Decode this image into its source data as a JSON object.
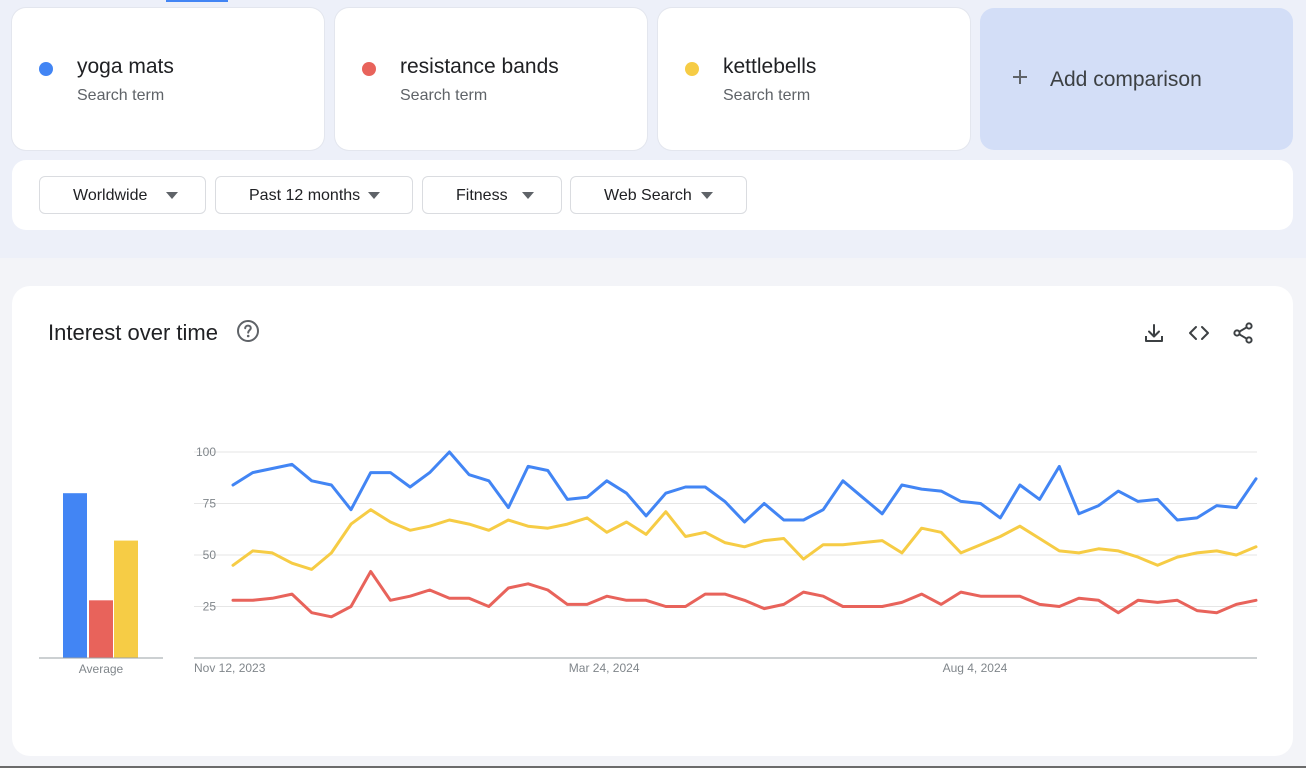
{
  "terms": [
    {
      "name": "yoga mats",
      "type": "Search term",
      "color": "#4285f4"
    },
    {
      "name": "resistance bands",
      "type": "Search term",
      "color": "#e8635b"
    },
    {
      "name": "kettlebells",
      "type": "Search term",
      "color": "#f6cc45"
    }
  ],
  "add_comparison": {
    "label": "Add comparison",
    "icon": "plus-icon"
  },
  "filters": [
    {
      "label": "Worldwide"
    },
    {
      "label": "Past 12 months"
    },
    {
      "label": "Fitness"
    },
    {
      "label": "Web Search"
    }
  ],
  "panel": {
    "title": "Interest over time",
    "help_icon": "help-circle-icon",
    "tools": [
      "download-icon",
      "embed-code-icon",
      "share-icon"
    ]
  },
  "chart_data": {
    "type": "line",
    "averages": {
      "label": "Average",
      "values": [
        80,
        28,
        57
      ]
    },
    "x_tick_labels": [
      "Nov 12, 2023",
      "Mar 24, 2024",
      "Aug 4, 2024"
    ],
    "x_tick_positions": [
      0,
      19,
      38
    ],
    "y_ticks": [
      25,
      50,
      75,
      100
    ],
    "ylim": [
      0,
      100
    ],
    "grid": true,
    "series": [
      {
        "name": "yoga mats",
        "color": "#4285f4",
        "values": [
          84,
          90,
          92,
          94,
          86,
          84,
          72,
          90,
          90,
          83,
          90,
          100,
          89,
          86,
          73,
          93,
          91,
          77,
          78,
          86,
          80,
          69,
          80,
          83,
          83,
          76,
          66,
          75,
          67,
          67,
          72,
          86,
          78,
          70,
          84,
          82,
          81,
          76,
          75,
          68,
          84,
          77,
          93,
          70,
          74,
          81,
          76,
          77,
          67,
          68,
          74,
          73,
          87
        ]
      },
      {
        "name": "resistance bands",
        "color": "#e8635b",
        "values": [
          28,
          28,
          29,
          31,
          22,
          20,
          25,
          42,
          28,
          30,
          33,
          29,
          29,
          25,
          34,
          36,
          33,
          26,
          26,
          30,
          28,
          28,
          25,
          25,
          31,
          31,
          28,
          24,
          26,
          32,
          30,
          25,
          25,
          25,
          27,
          31,
          26,
          32,
          30,
          30,
          30,
          26,
          25,
          29,
          28,
          22,
          28,
          27,
          28,
          23,
          22,
          26,
          28
        ]
      },
      {
        "name": "kettlebells",
        "color": "#f6cc45",
        "values": [
          45,
          52,
          51,
          46,
          43,
          51,
          65,
          72,
          66,
          62,
          64,
          67,
          65,
          62,
          67,
          64,
          63,
          65,
          68,
          61,
          66,
          60,
          71,
          59,
          61,
          56,
          54,
          57,
          58,
          48,
          55,
          55,
          56,
          57,
          51,
          63,
          61,
          51,
          55,
          59,
          64,
          58,
          52,
          51,
          53,
          52,
          49,
          45,
          49,
          51,
          52,
          50,
          54
        ]
      }
    ]
  }
}
